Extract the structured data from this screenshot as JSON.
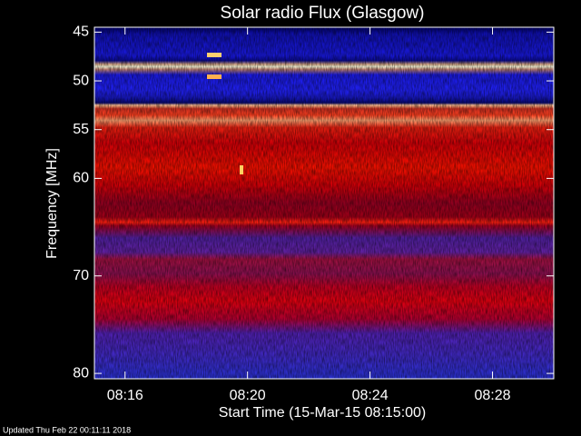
{
  "chart_data": {
    "type": "spectrogram",
    "title": "Solar radio Flux (Glasgow)",
    "x_label": "Start Time (15-Mar-15 08:15:00)",
    "y_label": "Frequency [MHz]",
    "footer": "Updated Thu Feb 22 00:11:11 2018",
    "xlim": [
      0,
      15
    ],
    "xticks": [
      {
        "value": 1,
        "label": "08:16"
      },
      {
        "value": 5,
        "label": "08:20"
      },
      {
        "value": 9,
        "label": "08:24"
      },
      {
        "value": 13,
        "label": "08:28"
      }
    ],
    "ylim": [
      80.55,
      44.5
    ],
    "yticks": [
      45,
      50,
      55,
      60,
      70,
      80
    ]
  }
}
